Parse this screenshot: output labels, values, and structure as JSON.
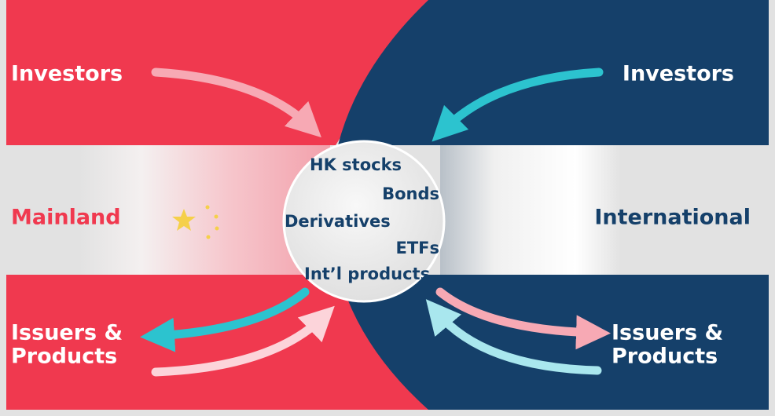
{
  "left": {
    "investors": "Investors",
    "region": "Mainland",
    "issuers": [
      "Issuers &",
      "Products"
    ]
  },
  "right": {
    "investors": "Investors",
    "region": "International",
    "issuers": [
      "Issuers &",
      "Products"
    ]
  },
  "center": {
    "products": [
      "HK stocks",
      "Bonds",
      "Derivatives",
      "ETFs",
      "Int’l products"
    ]
  }
}
